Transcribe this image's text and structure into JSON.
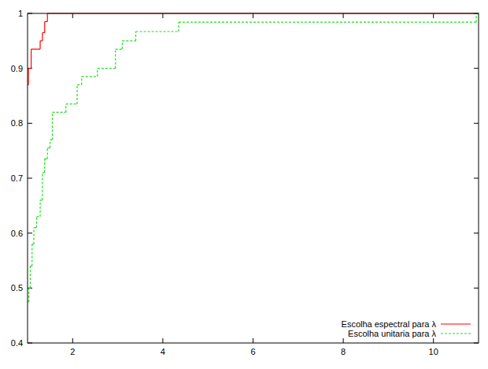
{
  "chart_data": {
    "type": "step",
    "xlim": [
      1,
      11
    ],
    "ylim": [
      0.4,
      1
    ],
    "xticks": [
      2,
      4,
      6,
      8,
      10
    ],
    "yticks": [
      0.4,
      0.5,
      0.6,
      0.7,
      0.8,
      0.9,
      1
    ],
    "grid": false,
    "legend": "lower right",
    "series": [
      {
        "name": "Escolha espectral para λ",
        "color": "#ff0000",
        "line_style": "solid",
        "x": [
          1,
          1.02,
          1.08,
          1.28,
          1.33,
          1.38,
          1.44,
          11
        ],
        "values": [
          0.87,
          0.9,
          0.935,
          0.95,
          0.965,
          0.985,
          1,
          1
        ]
      },
      {
        "name": "Escolha unitaria para λ",
        "color": "#22dd22",
        "line_style": "dashed",
        "x": [
          1,
          1.03,
          1.06,
          1.1,
          1.14,
          1.2,
          1.28,
          1.33,
          1.38,
          1.44,
          1.5,
          1.55,
          1.85,
          2.1,
          2.2,
          2.55,
          2.95,
          3.1,
          3.4,
          4.35,
          10.95,
          11
        ],
        "values": [
          0.475,
          0.5,
          0.54,
          0.58,
          0.61,
          0.63,
          0.66,
          0.71,
          0.735,
          0.755,
          0.77,
          0.82,
          0.835,
          0.87,
          0.885,
          0.9,
          0.935,
          0.95,
          0.967,
          0.984,
          1,
          1
        ]
      }
    ]
  }
}
